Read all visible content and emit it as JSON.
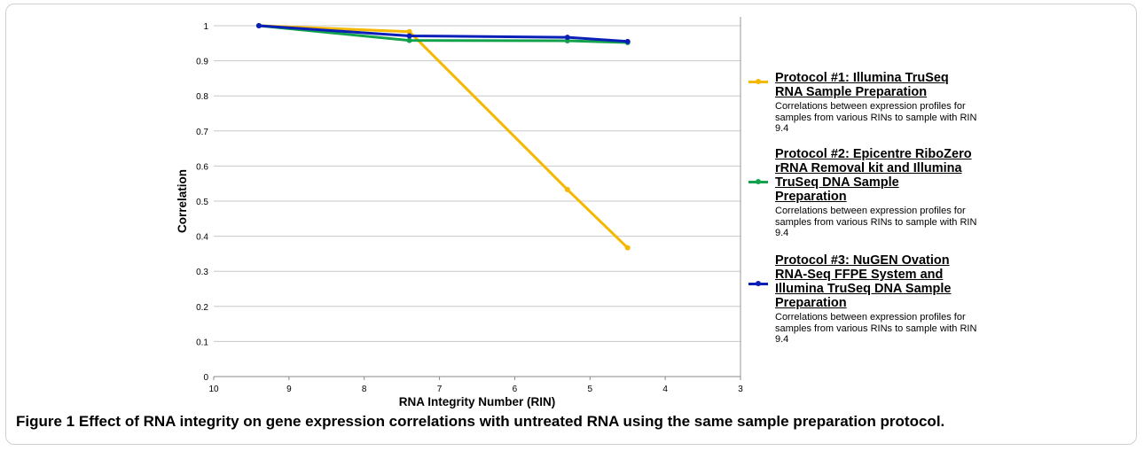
{
  "chart_data": {
    "type": "line",
    "xlabel": "RNA Integrity Number (RIN)",
    "ylabel": "Correlation",
    "xlim": [
      10,
      3
    ],
    "ylim": [
      0,
      1
    ],
    "x_reversed": true,
    "x_ticks": [
      "10",
      "9",
      "8",
      "7",
      "6",
      "5",
      "4",
      "3"
    ],
    "y_ticks": [
      "0",
      "0.1",
      "0.2",
      "0.3",
      "0.4",
      "0.5",
      "0.6",
      "0.7",
      "0.8",
      "0.9",
      "1"
    ],
    "grid": true,
    "legend_position": "right",
    "series": [
      {
        "name": "Protocol #1: Illumina TruSeq RNA Sample Preparation",
        "color": "#f5b800",
        "x": [
          9.4,
          7.4,
          5.3,
          4.5
        ],
        "y": [
          1.0,
          0.983,
          0.533,
          0.367
        ]
      },
      {
        "name": "Protocol #2: Epicentre RiboZero rRNA Removal kit and Illumina TruSeq DNA Sample Preparation",
        "color": "#12a24b",
        "x": [
          9.4,
          7.4,
          5.3,
          4.5
        ],
        "y": [
          1.0,
          0.958,
          0.957,
          0.952
        ]
      },
      {
        "name": "Protocol #3: NuGEN Ovation RNA-Seq FFPE System and Illumina TruSeq DNA Sample Preparation",
        "color": "#0a1fb8",
        "x": [
          9.4,
          7.4,
          5.3,
          4.5
        ],
        "y": [
          1.0,
          0.971,
          0.967,
          0.955
        ]
      }
    ]
  },
  "legend": [
    {
      "title_lines": [
        "Protocol #1: Illumina TruSeq",
        "RNA Sample Preparation"
      ],
      "desc": "Correlations between expression profiles for samples from various RINs to sample with RIN 9.4"
    },
    {
      "title_lines": [
        "Protocol #2: Epicentre RiboZero",
        "rRNA Removal kit and Illumina",
        "TruSeq DNA Sample",
        "Preparation"
      ],
      "desc": "Correlations between expression profiles for samples from various RINs to sample with RIN 9.4"
    },
    {
      "title_lines": [
        "Protocol #3: NuGEN Ovation",
        "RNA-Seq FFPE System and",
        "Illumina TruSeq DNA Sample",
        "Preparation"
      ],
      "desc": "Correlations between expression profiles for samples from various RINs to sample with RIN 9.4"
    }
  ],
  "caption": {
    "label": "Figure 1",
    "text": "Effect of RNA integrity on gene expression correlations with untreated RNA using the same sample preparation protocol."
  }
}
